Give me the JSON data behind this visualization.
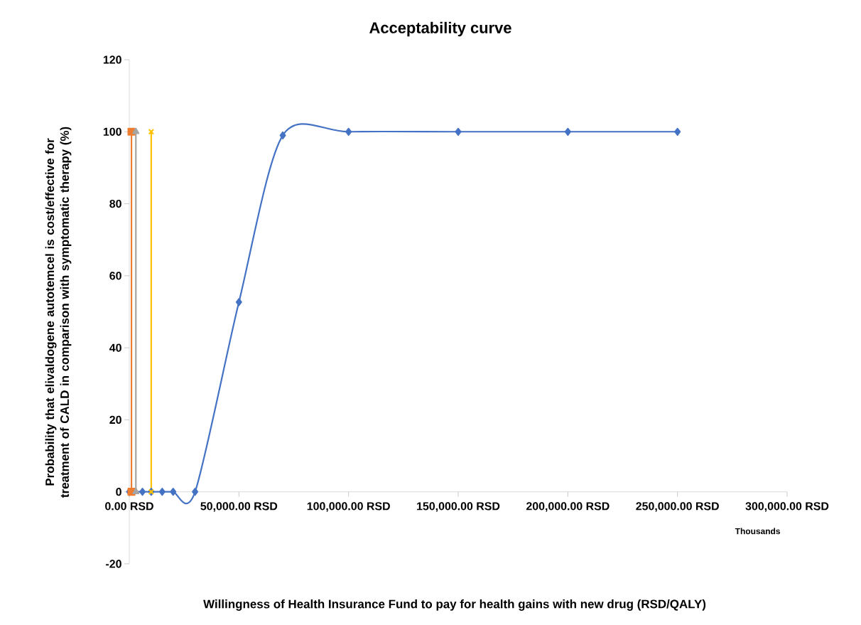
{
  "chart_data": {
    "type": "line",
    "title": "Acceptability curve",
    "xlabel": "Willingness of Health Insurance Fund to pay for health gains with new drug (RSD/QALY)",
    "ylabel": "Probability that elivaldogene autotemcel is cost/effective for treatment of CALD in comparison with symptomatic therapy (%)",
    "xlim": [
      0,
      300000
    ],
    "ylim": [
      -20,
      120
    ],
    "xticks": [
      {
        "value": 0,
        "label": "0.00 RSD"
      },
      {
        "value": 50000,
        "label": "50,000.00 RSD"
      },
      {
        "value": 100000,
        "label": "100,000.00 RSD"
      },
      {
        "value": 150000,
        "label": "150,000.00 RSD"
      },
      {
        "value": 200000,
        "label": "200,000.00 RSD"
      },
      {
        "value": 250000,
        "label": "250,000.00 RSD"
      },
      {
        "value": 300000,
        "label": "300,000.00 RSD"
      }
    ],
    "yticks": [
      -20,
      0,
      20,
      40,
      60,
      80,
      100,
      120
    ],
    "annotations": [
      "Thousands"
    ],
    "series": [
      {
        "color": "#4472c4",
        "marker": "diamond",
        "x": [
          0,
          6000,
          10000,
          15000,
          20000,
          30000,
          50000,
          70000,
          100000,
          150000,
          200000,
          250000
        ],
        "values": [
          0,
          0,
          0,
          0,
          0,
          0,
          52.7,
          99,
          100,
          100,
          100,
          100
        ]
      },
      {
        "color": "#ed7d31",
        "marker": "square",
        "x": [
          1000,
          1000
        ],
        "values": [
          0,
          100
        ]
      },
      {
        "color": "#a5a5a5",
        "marker": "triangle",
        "x": [
          3000,
          3000
        ],
        "values": [
          0,
          100
        ]
      },
      {
        "color": "#ffc000",
        "marker": "cross",
        "x": [
          10000,
          10000
        ],
        "values": [
          0,
          100
        ]
      }
    ]
  }
}
